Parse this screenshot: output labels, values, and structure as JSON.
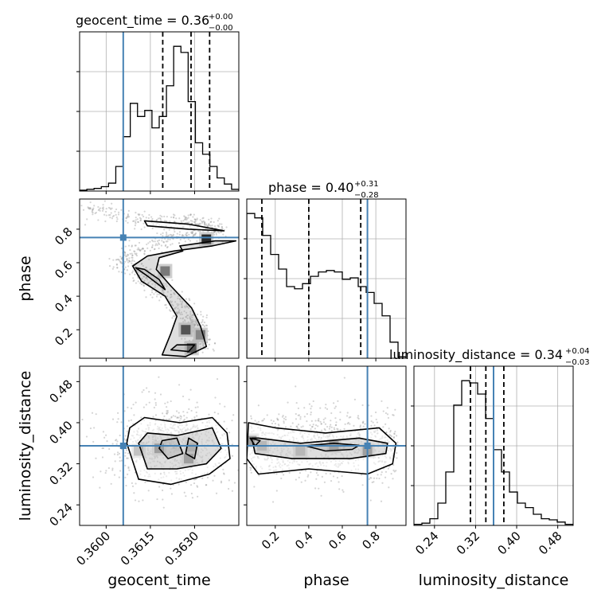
{
  "chart_data": {
    "type": "corner",
    "truth_color": "#4682b4",
    "hist_color": "#000000",
    "parameters": [
      {
        "name": "geocent_time",
        "label": "geocent_time",
        "median": "0.36",
        "plus": "+0.00",
        "minus": "−0.00",
        "range": [
          0.3591,
          0.3645
        ],
        "ticks": [
          "0.3600",
          "0.3615",
          "0.3630"
        ],
        "tick_values": [
          0.36,
          0.3615,
          0.363
        ],
        "truth": 0.36058,
        "quantiles": [
          0.36192,
          0.36288,
          0.36351
        ]
      },
      {
        "name": "phase",
        "label": "phase",
        "median": "0.40",
        "plus": "+0.31",
        "minus": "−0.28",
        "range": [
          0.03,
          0.98
        ],
        "ticks": [
          "0.2",
          "0.4",
          "0.6",
          "0.8"
        ],
        "tick_values": [
          0.2,
          0.4,
          0.6,
          0.8
        ],
        "truth": 0.75,
        "quantiles": [
          0.12,
          0.4,
          0.71
        ]
      },
      {
        "name": "luminosity_distance",
        "label": "luminosity_distance",
        "median": "0.34",
        "plus": "+0.04",
        "minus": "−0.03",
        "range": [
          0.2,
          0.51
        ],
        "ticks": [
          "0.24",
          "0.32",
          "0.40",
          "0.48"
        ],
        "tick_values": [
          0.24,
          0.32,
          0.4,
          0.48
        ],
        "truth": 0.355,
        "quantiles": [
          0.31,
          0.34,
          0.375
        ]
      }
    ],
    "histograms": [
      [
        1,
        2,
        3,
        5,
        9,
        28,
        62,
        100,
        85,
        92,
        72,
        85,
        120,
        165,
        158,
        102,
        55,
        42,
        28,
        15,
        8,
        2
      ],
      [
        198,
        192,
        168,
        142,
        122,
        98,
        95,
        102,
        112,
        118,
        120,
        118,
        108,
        110,
        98,
        90,
        75,
        58,
        22,
        2
      ],
      [
        1,
        2,
        6,
        20,
        48,
        108,
        130,
        128,
        118,
        96,
        68,
        48,
        30,
        20,
        16,
        10,
        6,
        5,
        3,
        1
      ]
    ]
  }
}
